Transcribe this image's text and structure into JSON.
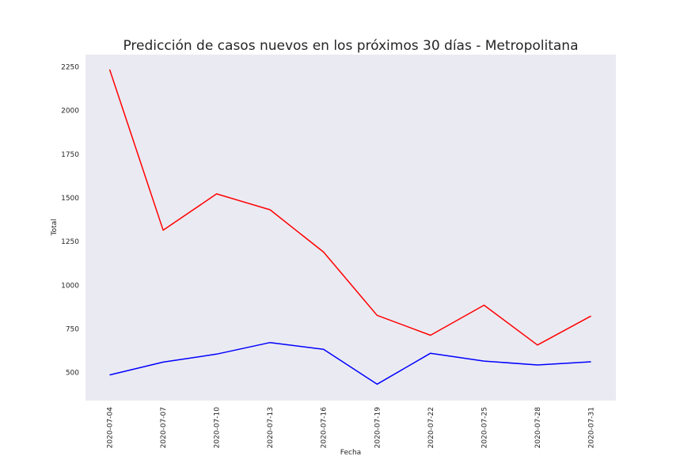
{
  "chart_data": {
    "type": "line",
    "title": "Predicción de casos nuevos en los próximos 30 días - Metropolitana",
    "xlabel": "Fecha",
    "ylabel": "Total",
    "x": [
      "2020-07-04",
      "2020-07-07",
      "2020-07-10",
      "2020-07-13",
      "2020-07-16",
      "2020-07-19",
      "2020-07-22",
      "2020-07-25",
      "2020-07-28",
      "2020-07-31"
    ],
    "yticks": [
      500,
      750,
      1000,
      1250,
      1500,
      1750,
      2000,
      2250
    ],
    "ylim": [
      340,
      2320
    ],
    "grid": false,
    "series": [
      {
        "color": "#ff0000",
        "values": [
          2235,
          1315,
          1523,
          1432,
          1190,
          828,
          714,
          886,
          658,
          824
        ]
      },
      {
        "color": "#0000ff",
        "values": [
          487,
          560,
          606,
          672,
          633,
          434,
          611,
          566,
          544,
          562
        ]
      }
    ]
  },
  "colors": {
    "plot_background": "#eaeaf2"
  }
}
